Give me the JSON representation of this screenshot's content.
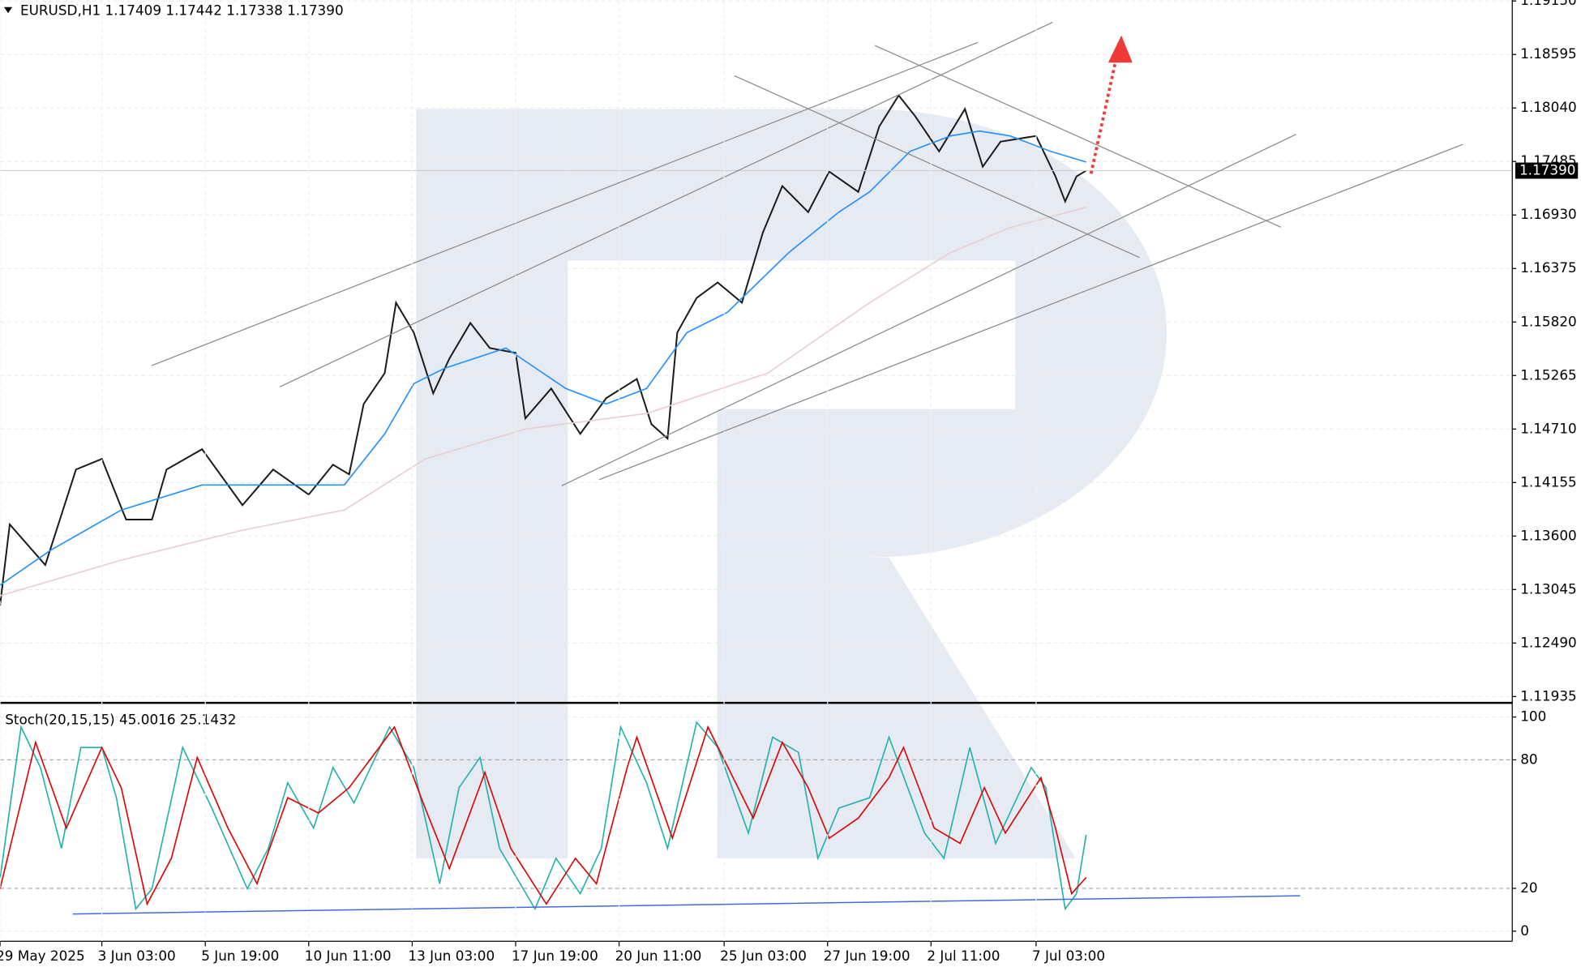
{
  "chart_data": [
    {
      "type": "line",
      "title": "EURUSD,H1  1.17409 1.17442 1.17338 1.17390",
      "xlim": [
        0,
        935
      ],
      "ylim": [
        1.1189,
        1.1916
      ],
      "grid": true,
      "yticks": [
        {
          "value": 1.1915,
          "label": "1.19150"
        },
        {
          "value": 1.18595,
          "label": "1.18595"
        },
        {
          "value": 1.1804,
          "label": "1.18040"
        },
        {
          "value": 1.17485,
          "label": "1.17485"
        },
        {
          "value": 1.1693,
          "label": "1.16930"
        },
        {
          "value": 1.16375,
          "label": "1.16375"
        },
        {
          "value": 1.1582,
          "label": "1.15820"
        },
        {
          "value": 1.15265,
          "label": "1.15265"
        },
        {
          "value": 1.1471,
          "label": "1.14710"
        },
        {
          "value": 1.14155,
          "label": "1.14155"
        },
        {
          "value": 1.136,
          "label": "1.13600"
        },
        {
          "value": 1.13045,
          "label": "1.13045"
        },
        {
          "value": 1.1249,
          "label": "1.12490"
        },
        {
          "value": 1.11935,
          "label": "1.11935"
        }
      ],
      "last_price": {
        "value": 1.1739,
        "label": "1.17390"
      },
      "series": [
        {
          "color": "#1a1a1a",
          "x": [
            0,
            6,
            28,
            47,
            63,
            78,
            94,
            103,
            125,
            150,
            169,
            191,
            206,
            216,
            225,
            238,
            245,
            256,
            268,
            278,
            291,
            303,
            319,
            325,
            341,
            359,
            375,
            394,
            403,
            413,
            419,
            431,
            444,
            459,
            472,
            484,
            500,
            513,
            531,
            544,
            556,
            566,
            581,
            597,
            608,
            619,
            641,
            653,
            659,
            666,
            672
          ],
          "values": [
            1.1288,
            1.1372,
            1.133,
            1.1429,
            1.144,
            1.1377,
            1.1377,
            1.1429,
            1.145,
            1.1392,
            1.1429,
            1.1403,
            1.1434,
            1.1424,
            1.1497,
            1.1529,
            1.1602,
            1.1571,
            1.1508,
            1.1544,
            1.1581,
            1.1555,
            1.155,
            1.1482,
            1.1513,
            1.1466,
            1.1503,
            1.1523,
            1.1476,
            1.1461,
            1.1571,
            1.1607,
            1.1623,
            1.1602,
            1.1675,
            1.1723,
            1.1696,
            1.1738,
            1.1717,
            1.1785,
            1.1817,
            1.1796,
            1.1759,
            1.1803,
            1.1743,
            1.1769,
            1.1775,
            1.1733,
            1.1707,
            1.1733,
            1.1739
          ]
        },
        {
          "color": "#1e90ff",
          "x": [
            0,
            31,
            75,
            125,
            175,
            213,
            238,
            256,
            275,
            313,
            350,
            375,
            400,
            425,
            450,
            488,
            519,
            538,
            563,
            588,
            606,
            625,
            650,
            672
          ],
          "values": [
            1.1309,
            1.1345,
            1.1387,
            1.1413,
            1.1413,
            1.1413,
            1.1466,
            1.1518,
            1.1534,
            1.1555,
            1.1513,
            1.1497,
            1.1513,
            1.1571,
            1.1592,
            1.1654,
            1.1696,
            1.1717,
            1.1759,
            1.1775,
            1.178,
            1.1775,
            1.1759,
            1.1748
          ]
        },
        {
          "color": "#e8cfcf",
          "x": [
            0,
            75,
            150,
            213,
            263,
            325,
            400,
            475,
            538,
            588,
            625,
            672
          ],
          "values": [
            1.1298,
            1.1335,
            1.1366,
            1.1387,
            1.144,
            1.1471,
            1.1487,
            1.1529,
            1.1602,
            1.1654,
            1.168,
            1.1701
          ]
        }
      ]
    },
    {
      "type": "line",
      "title": "Stoch(20,15,15) 45.0016 25.1432",
      "xlim": [
        0,
        935
      ],
      "ylim": [
        -4.7,
        104.7
      ],
      "grid": true,
      "yticks": [
        0,
        20,
        80,
        100
      ],
      "xticks": [
        {
          "value": 0,
          "label": "29 May 2025"
        },
        {
          "value": 63,
          "label": "3 Jun 03:00"
        },
        {
          "value": 127,
          "label": "5 Jun 19:00"
        },
        {
          "value": 191,
          "label": "10 Jun 11:00"
        },
        {
          "value": 255,
          "label": "13 Jun 03:00"
        },
        {
          "value": 319,
          "label": "17 Jun 19:00"
        },
        {
          "value": 383,
          "label": "20 Jun 11:00"
        },
        {
          "value": 448,
          "label": "25 Jun 03:00"
        },
        {
          "value": 512,
          "label": "27 Jun 19:00"
        },
        {
          "value": 576,
          "label": "2 Jul 11:00"
        },
        {
          "value": 641,
          "label": "7 Jul 03:00"
        }
      ],
      "series": [
        {
          "color": "#20b2aa",
          "x": [
            0,
            13,
            25,
            38,
            50,
            63,
            72,
            84,
            94,
            113,
            131,
            153,
            166,
            178,
            194,
            206,
            219,
            241,
            256,
            272,
            284,
            297,
            309,
            331,
            344,
            359,
            372,
            384,
            400,
            413,
            431,
            444,
            463,
            478,
            494,
            506,
            519,
            538,
            550,
            572,
            584,
            600,
            616,
            638,
            647,
            659,
            666,
            672
          ],
          "values": [
            24.5,
            95.3,
            76.4,
            38.7,
            85.8,
            85.8,
            62.3,
            10.4,
            19.8,
            85.8,
            57.5,
            19.8,
            38.7,
            69.3,
            48.1,
            76.4,
            59.9,
            95.3,
            76.4,
            22.2,
            67,
            81.1,
            38.7,
            10.4,
            34,
            17.5,
            38.7,
            95.3,
            69.3,
            38.7,
            97.6,
            85.8,
            45.8,
            90.6,
            83.5,
            34,
            57.5,
            62.3,
            90.6,
            45.8,
            34,
            85.8,
            41,
            76.4,
            67,
            10.4,
            17.5,
            45.0
          ]
        },
        {
          "color": "#e00000",
          "x": [
            0,
            22,
            41,
            63,
            75,
            91,
            106,
            122,
            141,
            159,
            178,
            197,
            216,
            244,
            263,
            278,
            300,
            316,
            338,
            356,
            369,
            388,
            394,
            416,
            438,
            466,
            484,
            500,
            513,
            531,
            550,
            559,
            578,
            594,
            609,
            622,
            644,
            653,
            663,
            672
          ],
          "values": [
            19.8,
            88.2,
            48.1,
            85.8,
            67,
            12.7,
            34,
            81.1,
            48.1,
            22.2,
            62.3,
            55.2,
            67,
            95.3,
            57.5,
            29.2,
            74.1,
            38.7,
            12.7,
            34,
            22.2,
            76.4,
            90.6,
            43.4,
            95.3,
            52.8,
            88.2,
            67,
            43.4,
            52.8,
            71.7,
            85.8,
            48.1,
            41,
            67,
            45.8,
            71.7,
            48.1,
            17.5,
            25.1
          ]
        }
      ]
    }
  ]
}
